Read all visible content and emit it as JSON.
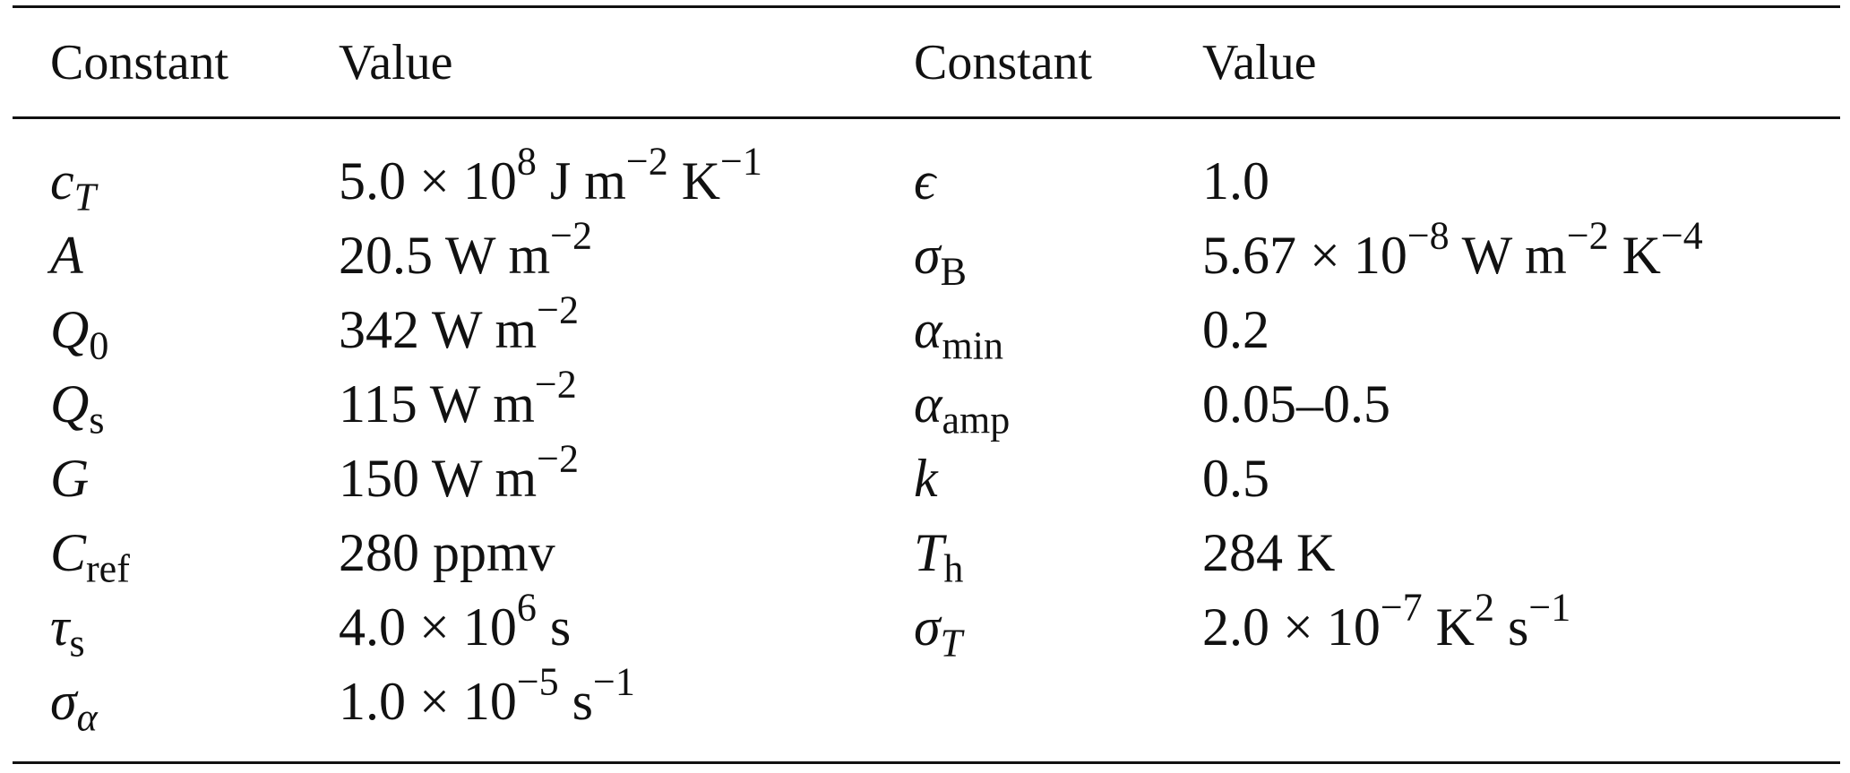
{
  "table": {
    "headers": {
      "left_constant": "Constant",
      "left_value": "Value",
      "right_constant": "Constant",
      "right_value": "Value"
    },
    "left_rows": [
      {
        "base": "c",
        "sub": "T",
        "mantissa": "5.0 × 10",
        "exp": "8",
        "unit_a": " J m",
        "unit_a_exp": "−2",
        "unit_b": " K",
        "unit_b_exp": "−1"
      },
      {
        "base": "A",
        "value": "20.5 W m",
        "value_exp": "−2"
      },
      {
        "base": "Q",
        "sub": "0",
        "value": "342 W m",
        "value_exp": "−2"
      },
      {
        "base": "Q",
        "sub": "s",
        "value": "115 W m",
        "value_exp": "−2"
      },
      {
        "base": "G",
        "value": "150 W m",
        "value_exp": "−2"
      },
      {
        "base": "C",
        "sub": "ref",
        "value": "280 ppmv"
      },
      {
        "base": "τ",
        "sub": "s",
        "mantissa": "4.0 × 10",
        "exp": "6",
        "unit_a": " s"
      },
      {
        "base": "σ",
        "sub": "α",
        "mantissa": "1.0 × 10",
        "exp": "−5",
        "unit_a": " s",
        "unit_a_exp": "−1"
      }
    ],
    "right_rows": [
      {
        "base": "ϵ",
        "value": "1.0"
      },
      {
        "base": "σ",
        "sub": "B",
        "mantissa": "5.67 × 10",
        "exp": "−8",
        "unit_a": " W m",
        "unit_a_exp": "−2",
        "unit_b": " K",
        "unit_b_exp": "−4"
      },
      {
        "base": "α",
        "sub": "min",
        "value": "0.2"
      },
      {
        "base": "α",
        "sub": "amp",
        "value": "0.05–0.5"
      },
      {
        "base": "k",
        "value": "0.5"
      },
      {
        "base": "T",
        "sub": "h",
        "value": "284 K"
      },
      {
        "base": "σ",
        "sub": "T",
        "mantissa": "2.0 × 10",
        "exp": "−7",
        "unit_a": " K",
        "unit_a_exp": "2",
        "unit_b": " s",
        "unit_b_exp": "−1"
      }
    ]
  }
}
